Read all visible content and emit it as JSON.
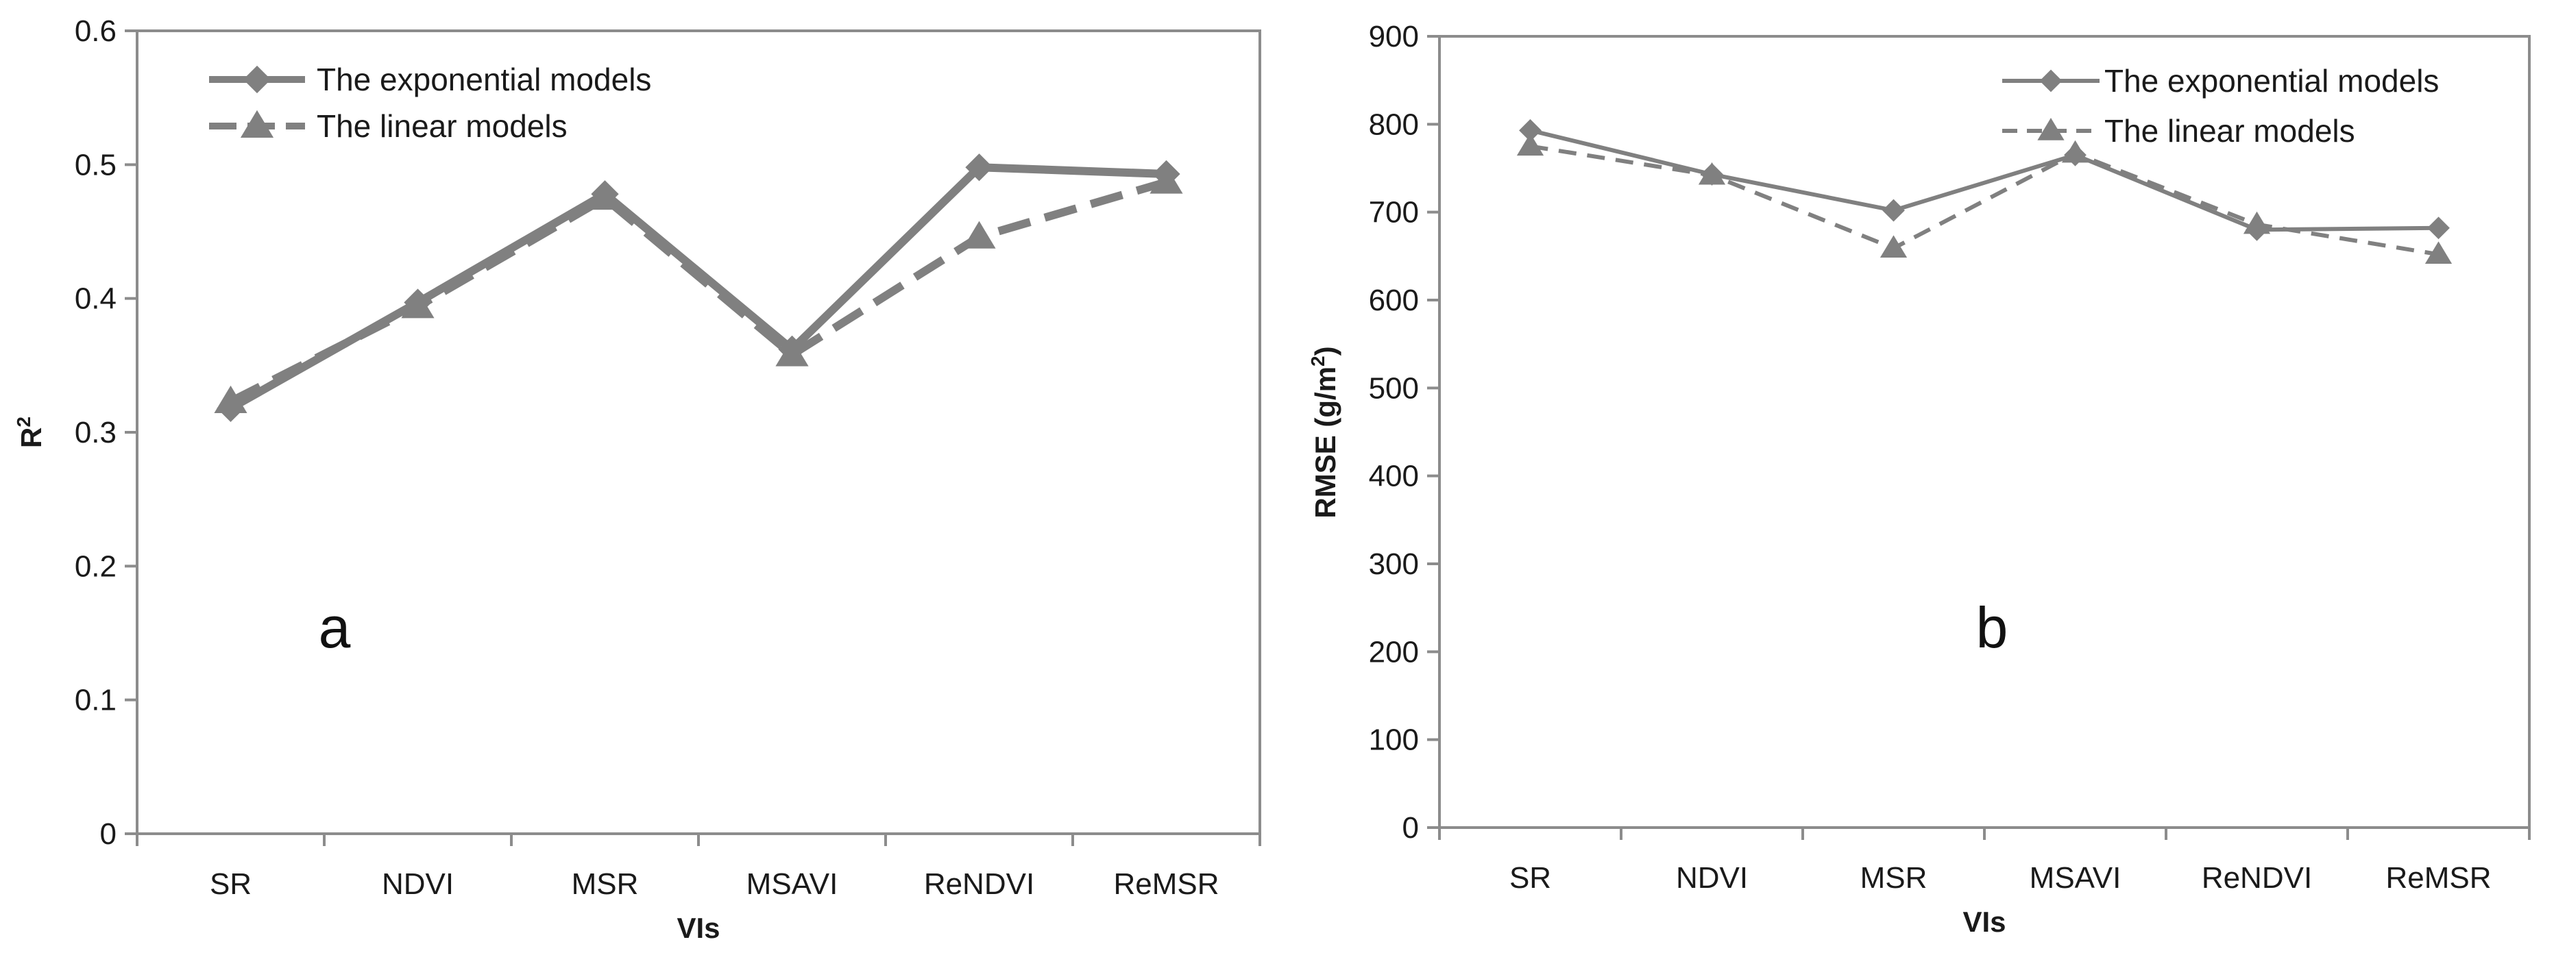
{
  "chart_data": [
    {
      "type": "line",
      "panel_label": "a",
      "title": "",
      "xlabel": "VIs",
      "ylabel": "R",
      "ylabel_sup": "2",
      "categories": [
        "SR",
        "NDVI",
        "MSR",
        "MSAVI",
        "ReNDVI",
        "ReMSR"
      ],
      "ylim": [
        0,
        0.6
      ],
      "yticks": [
        "0",
        "0.1",
        "0.2",
        "0.3",
        "0.4",
        "0.5",
        "0.6"
      ],
      "ytick_values": [
        0,
        0.1,
        0.2,
        0.3,
        0.4,
        0.5,
        0.6
      ],
      "grid": false,
      "legend_position": "top-left",
      "series": [
        {
          "name": "The exponential models",
          "values": [
            0.318,
            0.397,
            0.478,
            0.362,
            0.498,
            0.493
          ],
          "marker": "diamond",
          "style": "solid",
          "color": "#808080"
        },
        {
          "name": "The linear models",
          "values": [
            0.323,
            0.394,
            0.475,
            0.358,
            0.446,
            0.487
          ],
          "marker": "triangle",
          "style": "dashed",
          "color": "#808080"
        }
      ]
    },
    {
      "type": "line",
      "panel_label": "b",
      "title": "",
      "xlabel": "VIs",
      "ylabel": "RMSE (g/m",
      "ylabel_sup": "2",
      "ylabel_suffix": ")",
      "categories": [
        "SR",
        "NDVI",
        "MSR",
        "MSAVI",
        "ReNDVI",
        "ReMSR"
      ],
      "ylim": [
        0,
        900
      ],
      "yticks": [
        "0",
        "100",
        "200",
        "300",
        "400",
        "500",
        "600",
        "700",
        "800",
        "900"
      ],
      "ytick_values": [
        0,
        100,
        200,
        300,
        400,
        500,
        600,
        700,
        800,
        900
      ],
      "grid": false,
      "legend_position": "top-right",
      "series": [
        {
          "name": "The exponential models",
          "values": [
            793,
            743,
            702,
            765,
            680,
            682
          ],
          "marker": "diamond",
          "style": "solid",
          "color": "#808080"
        },
        {
          "name": "The linear models",
          "values": [
            775,
            742,
            659,
            767,
            686,
            652
          ],
          "marker": "triangle",
          "style": "dashed",
          "color": "#808080"
        }
      ]
    }
  ]
}
